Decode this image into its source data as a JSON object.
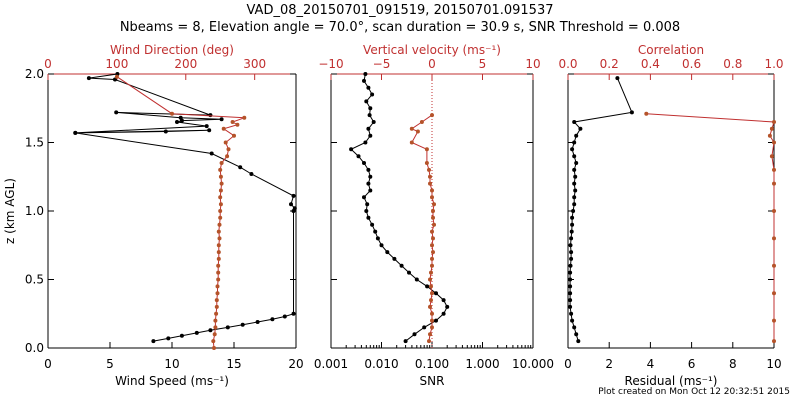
{
  "title": {
    "line1": "VAD_08_20150701_091519, 20150701.091537",
    "line2": "Nbeams = 8, Elevation angle = 70.0°, scan duration = 30.9 s, SNR Threshold = 0.008"
  },
  "footer": "Plot created on Mon Oct 12 20:32:51 2015",
  "colors": {
    "black": "#000000",
    "red": "#c03030",
    "orange": "#b5532a"
  },
  "chart_data": [
    {
      "type": "line",
      "panel": "wind",
      "ylabel": "z (km AGL)",
      "yticks": [
        "0.0",
        "0.5",
        "1.0",
        "1.5",
        "2.0"
      ],
      "ylim": [
        0,
        2.0
      ],
      "bottom_axis": {
        "label": "Wind Speed (ms⁻¹)",
        "ticks": [
          "0",
          "5",
          "10",
          "15",
          "20"
        ],
        "range": [
          0,
          20
        ]
      },
      "top_axis": {
        "label": "Wind Direction (deg)",
        "ticks": [
          "0",
          "100",
          "200",
          "300"
        ],
        "range": [
          0,
          360
        ],
        "color": "red"
      },
      "series": [
        {
          "axis": "bottom",
          "color": "black",
          "points": [
            [
              8.5,
              0.05
            ],
            [
              9.7,
              0.07
            ],
            [
              10.8,
              0.09
            ],
            [
              12.0,
              0.11
            ],
            [
              13.1,
              0.13
            ],
            [
              14.5,
              0.15
            ],
            [
              15.7,
              0.17
            ],
            [
              16.9,
              0.19
            ],
            [
              18.1,
              0.21
            ],
            [
              19.1,
              0.23
            ],
            [
              19.8,
              0.25
            ],
            [
              19.8,
              1.0
            ],
            [
              19.9,
              1.02
            ],
            [
              19.6,
              1.05
            ],
            [
              19.8,
              1.11
            ],
            [
              16.4,
              1.27
            ],
            [
              15.5,
              1.32
            ],
            [
              13.2,
              1.42
            ],
            [
              2.2,
              1.57
            ],
            [
              9.5,
              1.58
            ],
            [
              13.0,
              1.59
            ],
            [
              2.2,
              1.57
            ],
            [
              12.8,
              1.62
            ],
            [
              10.4,
              1.65
            ],
            [
              10.8,
              1.66
            ],
            [
              14.0,
              1.67
            ],
            [
              10.7,
              1.68
            ],
            [
              5.5,
              1.72
            ],
            [
              13.1,
              1.7
            ],
            [
              5.4,
              1.96
            ],
            [
              3.3,
              1.97
            ],
            [
              5.6,
              2.0
            ]
          ]
        },
        {
          "axis": "top",
          "color": "red",
          "points": [
            [
              241,
              0.0
            ],
            [
              240,
              0.05
            ],
            [
              242,
              0.1
            ],
            [
              243,
              0.15
            ],
            [
              243,
              0.2
            ],
            [
              244,
              0.25
            ],
            [
              245,
              0.3
            ],
            [
              245,
              0.35
            ],
            [
              246,
              0.4
            ],
            [
              246,
              0.45
            ],
            [
              247,
              0.5
            ],
            [
              247,
              0.55
            ],
            [
              247,
              0.6
            ],
            [
              248,
              0.65
            ],
            [
              248,
              0.7
            ],
            [
              248,
              0.75
            ],
            [
              249,
              0.8
            ],
            [
              248,
              0.85
            ],
            [
              249,
              0.9
            ],
            [
              250,
              0.95
            ],
            [
              250,
              1.0
            ],
            [
              251,
              1.05
            ],
            [
              250,
              1.1
            ],
            [
              251,
              1.15
            ],
            [
              252,
              1.2
            ],
            [
              251,
              1.25
            ],
            [
              250,
              1.3
            ],
            [
              252,
              1.35
            ],
            [
              260,
              1.4
            ],
            [
              262,
              1.45
            ],
            [
              258,
              1.5
            ],
            [
              270,
              1.55
            ],
            [
              255,
              1.6
            ],
            [
              275,
              1.63
            ],
            [
              268,
              1.65
            ],
            [
              285,
              1.68
            ],
            [
              180,
              1.71
            ],
            [
              100,
              1.98
            ]
          ]
        }
      ]
    },
    {
      "type": "line",
      "panel": "vertical",
      "yticks": [
        "0.0",
        "0.5",
        "1.0",
        "1.5",
        "2.0"
      ],
      "ylim": [
        0,
        2.0
      ],
      "bottom_axis": {
        "label": "SNR",
        "ticks": [
          "0.001",
          "0.010",
          "0.100",
          "1.000",
          "10.000"
        ],
        "range": [
          0.001,
          10
        ],
        "scale": "log"
      },
      "top_axis": {
        "label": "Vertical velocity (ms⁻¹)",
        "ticks": [
          "−10",
          "−5",
          "0",
          "5",
          "10"
        ],
        "range": [
          -10,
          10
        ],
        "color": "red"
      },
      "zero_line": 0,
      "series": [
        {
          "axis": "bottom",
          "color": "black",
          "points": [
            [
              0.03,
              0.05
            ],
            [
              0.045,
              0.1
            ],
            [
              0.07,
              0.15
            ],
            [
              0.12,
              0.2
            ],
            [
              0.17,
              0.25
            ],
            [
              0.2,
              0.3
            ],
            [
              0.17,
              0.35
            ],
            [
              0.12,
              0.4
            ],
            [
              0.08,
              0.45
            ],
            [
              0.05,
              0.5
            ],
            [
              0.035,
              0.55
            ],
            [
              0.025,
              0.6
            ],
            [
              0.018,
              0.65
            ],
            [
              0.013,
              0.7
            ],
            [
              0.01,
              0.75
            ],
            [
              0.0085,
              0.8
            ],
            [
              0.0075,
              0.85
            ],
            [
              0.0065,
              0.9
            ],
            [
              0.0055,
              0.95
            ],
            [
              0.005,
              1.0
            ],
            [
              0.0052,
              1.05
            ],
            [
              0.0045,
              1.1
            ],
            [
              0.006,
              1.15
            ],
            [
              0.0055,
              1.2
            ],
            [
              0.006,
              1.25
            ],
            [
              0.0055,
              1.3
            ],
            [
              0.0045,
              1.35
            ],
            [
              0.0035,
              1.4
            ],
            [
              0.0025,
              1.45
            ],
            [
              0.0048,
              1.5
            ],
            [
              0.006,
              1.55
            ],
            [
              0.0055,
              1.6
            ],
            [
              0.007,
              1.65
            ],
            [
              0.0058,
              1.7
            ],
            [
              0.006,
              1.75
            ],
            [
              0.005,
              1.8
            ],
            [
              0.0065,
              1.85
            ],
            [
              0.0055,
              1.9
            ],
            [
              0.0045,
              1.95
            ],
            [
              0.0048,
              2.0
            ]
          ]
        },
        {
          "axis": "top",
          "color": "red",
          "points": [
            [
              -0.3,
              0.05
            ],
            [
              -0.2,
              0.1
            ],
            [
              0.0,
              0.15
            ],
            [
              0.0,
              0.2
            ],
            [
              0.0,
              0.25
            ],
            [
              -0.2,
              0.3
            ],
            [
              -0.1,
              0.35
            ],
            [
              0.0,
              0.4
            ],
            [
              -0.1,
              0.45
            ],
            [
              -0.2,
              0.5
            ],
            [
              -0.1,
              0.55
            ],
            [
              0.0,
              0.6
            ],
            [
              0.0,
              0.65
            ],
            [
              0.1,
              0.7
            ],
            [
              0.0,
              0.75
            ],
            [
              0.1,
              0.8
            ],
            [
              0.0,
              0.85
            ],
            [
              0.2,
              0.9
            ],
            [
              0.1,
              0.95
            ],
            [
              0.1,
              1.0
            ],
            [
              0.2,
              1.05
            ],
            [
              0.0,
              1.1
            ],
            [
              0.0,
              1.15
            ],
            [
              -0.2,
              1.2
            ],
            [
              -0.2,
              1.25
            ],
            [
              -0.3,
              1.3
            ],
            [
              -0.5,
              1.35
            ],
            [
              -0.5,
              1.45
            ],
            [
              -2.0,
              1.5
            ],
            [
              -1.4,
              1.58
            ],
            [
              -2.0,
              1.6
            ],
            [
              -1.0,
              1.65
            ],
            [
              0.0,
              1.7
            ]
          ]
        }
      ]
    },
    {
      "type": "line",
      "panel": "residual",
      "yticks": [
        "0.0",
        "0.5",
        "1.0",
        "1.5",
        "2.0"
      ],
      "ylim": [
        0,
        2.0
      ],
      "bottom_axis": {
        "label": "Residual (ms⁻¹)",
        "ticks": [
          "0",
          "2",
          "4",
          "6",
          "8",
          "10"
        ],
        "range": [
          0,
          10
        ]
      },
      "top_axis": {
        "label": "Correlation",
        "ticks": [
          "0.0",
          "0.2",
          "0.4",
          "0.6",
          "0.8",
          "1.0"
        ],
        "range": [
          0,
          1.0
        ],
        "color": "red"
      },
      "series": [
        {
          "axis": "bottom",
          "color": "black",
          "points": [
            [
              0.5,
              0.05
            ],
            [
              0.4,
              0.1
            ],
            [
              0.3,
              0.15
            ],
            [
              0.2,
              0.2
            ],
            [
              0.15,
              0.25
            ],
            [
              0.1,
              0.3
            ],
            [
              0.1,
              0.35
            ],
            [
              0.1,
              0.4
            ],
            [
              0.1,
              0.45
            ],
            [
              0.1,
              0.5
            ],
            [
              0.1,
              0.55
            ],
            [
              0.12,
              0.6
            ],
            [
              0.15,
              0.65
            ],
            [
              0.15,
              0.7
            ],
            [
              0.12,
              0.75
            ],
            [
              0.15,
              0.8
            ],
            [
              0.18,
              0.85
            ],
            [
              0.2,
              0.9
            ],
            [
              0.2,
              0.95
            ],
            [
              0.25,
              1.0
            ],
            [
              0.3,
              1.05
            ],
            [
              0.3,
              1.1
            ],
            [
              0.35,
              1.15
            ],
            [
              0.3,
              1.2
            ],
            [
              0.35,
              1.25
            ],
            [
              0.3,
              1.3
            ],
            [
              0.4,
              1.35
            ],
            [
              0.3,
              1.4
            ],
            [
              0.2,
              1.45
            ],
            [
              0.3,
              1.5
            ],
            [
              0.4,
              1.55
            ],
            [
              0.6,
              1.6
            ],
            [
              0.3,
              1.65
            ],
            [
              3.1,
              1.72
            ],
            [
              2.4,
              1.97
            ]
          ]
        },
        {
          "axis": "top",
          "color": "red",
          "points": [
            [
              1.0,
              0.05
            ],
            [
              1.0,
              0.2
            ],
            [
              1.0,
              0.4
            ],
            [
              1.0,
              0.6
            ],
            [
              1.0,
              0.8
            ],
            [
              1.0,
              1.0
            ],
            [
              1.0,
              1.2
            ],
            [
              1.0,
              1.3
            ],
            [
              0.99,
              1.4
            ],
            [
              1.0,
              1.5
            ],
            [
              0.98,
              1.55
            ],
            [
              0.99,
              1.6
            ],
            [
              1.0,
              1.65
            ],
            [
              0.38,
              1.71
            ]
          ]
        }
      ]
    }
  ]
}
